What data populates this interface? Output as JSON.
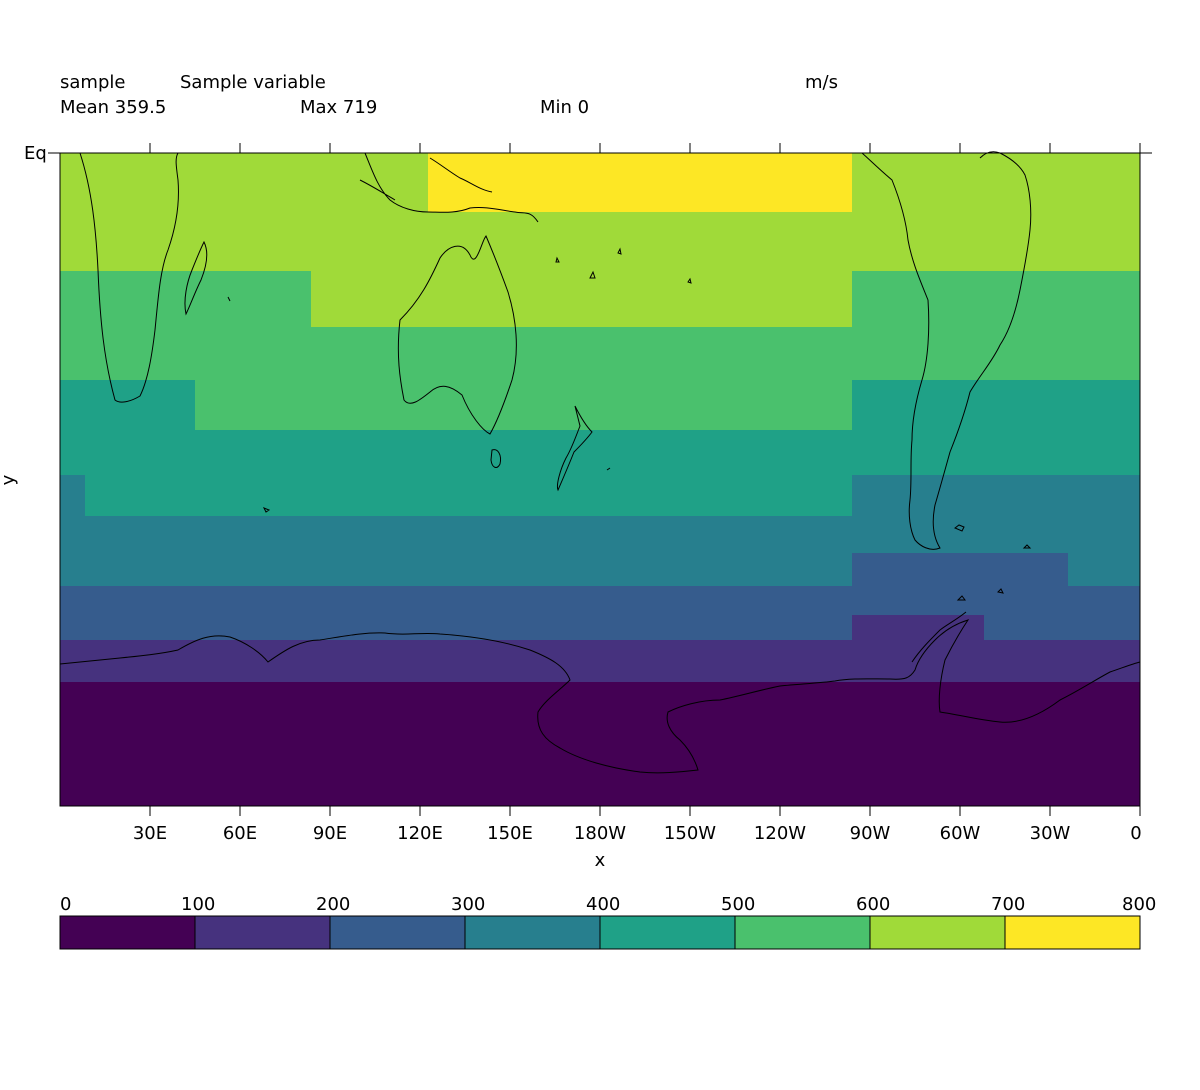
{
  "header": {
    "name": "sample",
    "long_name": "Sample variable",
    "units": "m/s",
    "mean_text": "Mean 359.5",
    "max_text": "Max 719",
    "min_text": "Min 0"
  },
  "axes": {
    "xlabel": "x",
    "ylabel": "y",
    "x_ticks": [
      "30E",
      "60E",
      "90E",
      "120E",
      "150E",
      "180W",
      "150W",
      "120W",
      "90W",
      "60W",
      "30W",
      "0"
    ],
    "x_tick_values": [
      30,
      60,
      90,
      120,
      150,
      180,
      210,
      240,
      270,
      300,
      330,
      360
    ],
    "y_ticks": [
      "Eq"
    ],
    "y_tick_values": [
      0
    ]
  },
  "chart_data": {
    "type": "heatmap",
    "title": "Sample variable",
    "xlabel": "x",
    "ylabel": "y",
    "units": "m/s",
    "xlim": [
      0,
      360
    ],
    "ylim": [
      -90,
      0
    ],
    "colormap": "viridis",
    "level_boundaries": [
      0,
      100,
      200,
      300,
      400,
      500,
      600,
      700,
      800
    ],
    "level_colors": [
      "#440154",
      "#46327e",
      "#365c8d",
      "#277f8e",
      "#1fa187",
      "#4ac16d",
      "#a0da39",
      "#fde725"
    ],
    "stats": {
      "mean": 359.5,
      "max": 719,
      "min": 0
    }
  },
  "colorbar": {
    "labels": [
      "0",
      "100",
      "200",
      "300",
      "400",
      "500",
      "600",
      "700",
      "800"
    ]
  }
}
